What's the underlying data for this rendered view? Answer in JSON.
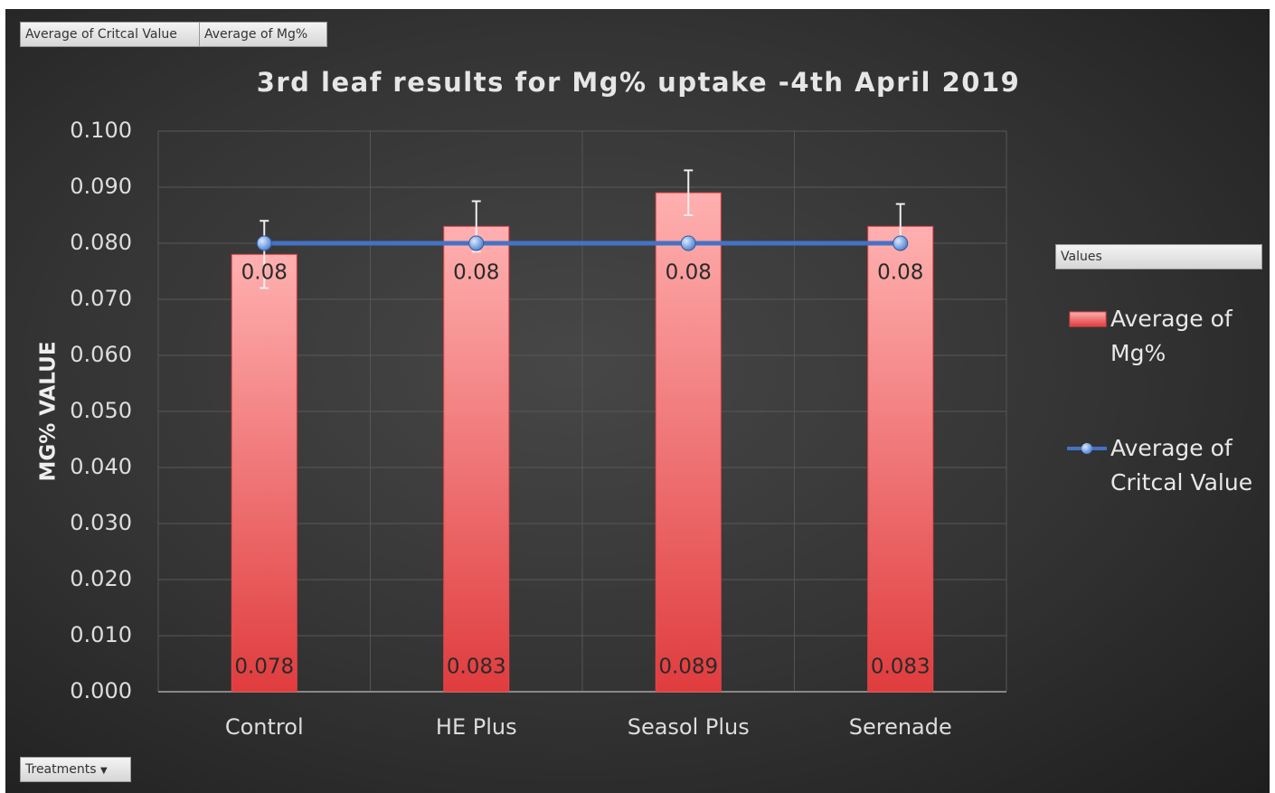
{
  "chart_data": {
    "type": "bar",
    "title": "3rd leaf results for Mg% uptake -4th April 2019",
    "y_label": "MG% VALUE",
    "categories": [
      "Control",
      "HE Plus",
      "Seasol Plus",
      "Serenade"
    ],
    "series": [
      {
        "name": "Average of Mg%",
        "type": "bar",
        "color": "#e8474a",
        "values": [
          0.078,
          0.083,
          0.089,
          0.083
        ],
        "errors": [
          0.006,
          0.0045,
          0.004,
          0.004
        ]
      },
      {
        "name": "Average of Critcal Value",
        "type": "line",
        "color": "#4472c4",
        "values": [
          0.08,
          0.08,
          0.08,
          0.08
        ]
      }
    ],
    "ylim": [
      0,
      0.1
    ],
    "yticks": [
      {
        "value": 0,
        "label": "0.000"
      },
      {
        "value": 0.01,
        "label": "0.010"
      },
      {
        "value": 0.02,
        "label": "0.020"
      },
      {
        "value": 0.03,
        "label": "0.030"
      },
      {
        "value": 0.04,
        "label": "0.040"
      },
      {
        "value": 0.05,
        "label": "0.050"
      },
      {
        "value": 0.06,
        "label": "0.060"
      },
      {
        "value": 0.07,
        "label": "0.070"
      },
      {
        "value": 0.08,
        "label": "0.080"
      },
      {
        "value": 0.09,
        "label": "0.090"
      },
      {
        "value": 0.1,
        "label": "0.100"
      }
    ],
    "grid": true,
    "legend": "right",
    "legend_title": "Values",
    "value_fields": [
      "Average of Critcal Value",
      "Average of Mg%"
    ],
    "axis_field": "Treatments"
  }
}
